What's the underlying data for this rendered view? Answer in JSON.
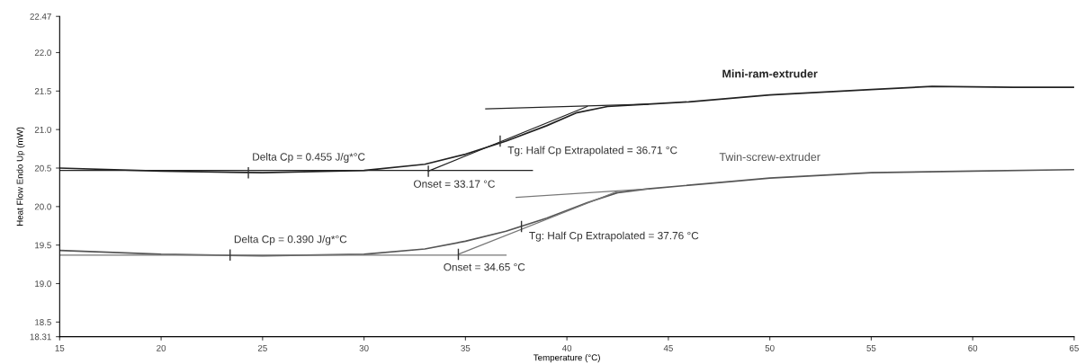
{
  "chart_data": {
    "type": "line",
    "xlabel": "Temperature (°C)",
    "ylabel": "Heat Flow Endo Up (mW)",
    "xlim": [
      15,
      65
    ],
    "xticks": [
      15,
      20,
      25,
      30,
      35,
      40,
      45,
      50,
      55,
      60,
      65
    ],
    "ylim": [
      18.31,
      22.47
    ],
    "yticks": [
      18.31,
      18.5,
      {
        "value": 19,
        "label": "19.0"
      },
      19.5,
      {
        "value": 20,
        "label": "20.0"
      },
      20.5,
      {
        "value": 21,
        "label": "21.0"
      },
      21.5,
      {
        "value": 22,
        "label": "22.0"
      },
      22.47
    ],
    "grid": false,
    "legend": false,
    "marker": "none",
    "line_style": "solid",
    "series": [
      {
        "name": "Mini-ram-extruder",
        "color": "#222222",
        "x": [
          15,
          20,
          25,
          30,
          33,
          35,
          37,
          39,
          40.5,
          42,
          44,
          46,
          50,
          55,
          58,
          62,
          65
        ],
        "values": [
          20.5,
          20.46,
          20.44,
          20.47,
          20.55,
          20.68,
          20.85,
          21.05,
          21.22,
          21.3,
          21.33,
          21.36,
          21.45,
          21.52,
          21.56,
          21.55,
          21.55
        ]
      },
      {
        "name": "Twin-screw-extruder",
        "color": "#555555",
        "x": [
          15,
          20,
          25,
          30,
          33,
          35,
          37,
          39,
          41,
          42.5,
          44,
          47,
          50,
          55,
          60,
          65
        ],
        "values": [
          19.43,
          19.38,
          19.36,
          19.38,
          19.45,
          19.55,
          19.68,
          19.85,
          20.05,
          20.18,
          20.23,
          20.3,
          20.37,
          20.44,
          20.46,
          20.48
        ]
      },
      {
        "color": "#222222",
        "x": [
          15,
          38.3
        ],
        "values": [
          20.47,
          20.47
        ]
      },
      {
        "color": "#222222",
        "x": [
          33.17,
          41
        ],
        "values": [
          20.46,
          21.3
        ]
      },
      {
        "color": "#222222",
        "x": [
          36,
          44
        ],
        "values": [
          21.27,
          21.33
        ]
      },
      {
        "color": "#777777",
        "x": [
          15,
          37
        ],
        "values": [
          19.37,
          19.37
        ]
      },
      {
        "color": "#777777",
        "x": [
          34.65,
          42.5
        ],
        "values": [
          19.38,
          20.2
        ]
      },
      {
        "color": "#777777",
        "x": [
          37.5,
          44
        ],
        "values": [
          20.12,
          20.23
        ]
      }
    ],
    "annotations": [
      {
        "text": "Delta Cp = 0.455 J/g*°C",
        "x": 24.3,
        "y": 20.44
      },
      {
        "text": "Onset = 33.17 °C",
        "x": 33.17,
        "y": 20.46
      },
      {
        "text": "Tg: Half Cp Extrapolated = 36.71 °C",
        "x": 36.71,
        "y": 20.85
      },
      {
        "text": "Delta Cp = 0.390 J/g*°C",
        "x": 23.4,
        "y": 19.37
      },
      {
        "text": "Onset = 34.65 °C",
        "x": 34.65,
        "y": 19.38
      },
      {
        "text": "Tg: Half Cp Extrapolated = 37.76 °C",
        "x": 37.76,
        "y": 19.74
      }
    ]
  }
}
